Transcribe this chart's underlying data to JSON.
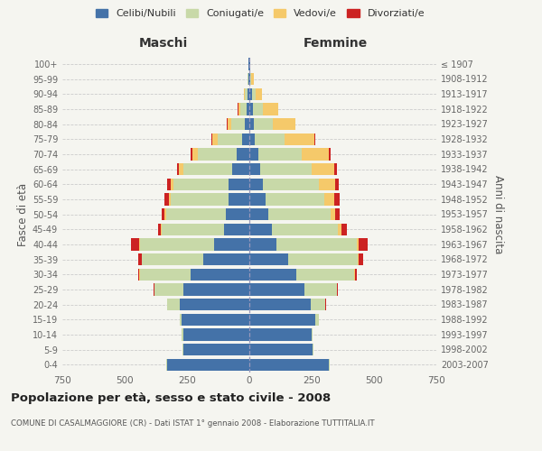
{
  "age_groups": [
    "0-4",
    "5-9",
    "10-14",
    "15-19",
    "20-24",
    "25-29",
    "30-34",
    "35-39",
    "40-44",
    "45-49",
    "50-54",
    "55-59",
    "60-64",
    "65-69",
    "70-74",
    "75-79",
    "80-84",
    "85-89",
    "90-94",
    "95-99",
    "100+"
  ],
  "birth_years": [
    "2003-2007",
    "1998-2002",
    "1993-1997",
    "1988-1992",
    "1983-1987",
    "1978-1982",
    "1973-1977",
    "1968-1972",
    "1963-1967",
    "1958-1962",
    "1953-1957",
    "1948-1952",
    "1943-1947",
    "1938-1942",
    "1933-1937",
    "1928-1932",
    "1923-1927",
    "1918-1922",
    "1913-1917",
    "1908-1912",
    "≤ 1907"
  ],
  "maschi": {
    "celibe": [
      330,
      265,
      265,
      270,
      280,
      265,
      235,
      185,
      140,
      100,
      95,
      85,
      85,
      70,
      50,
      28,
      18,
      12,
      8,
      4,
      2
    ],
    "coniugato": [
      2,
      3,
      5,
      10,
      50,
      115,
      205,
      245,
      300,
      250,
      240,
      230,
      220,
      195,
      155,
      100,
      55,
      25,
      10,
      3,
      1
    ],
    "vedovo": [
      0,
      0,
      0,
      0,
      0,
      1,
      1,
      2,
      3,
      4,
      5,
      8,
      12,
      18,
      25,
      20,
      15,
      8,
      3,
      1,
      0
    ],
    "divorziato": [
      0,
      0,
      0,
      0,
      1,
      3,
      5,
      12,
      30,
      12,
      10,
      18,
      12,
      8,
      5,
      3,
      2,
      1,
      0,
      0,
      0
    ]
  },
  "femmine": {
    "nubile": [
      320,
      255,
      250,
      265,
      245,
      220,
      190,
      155,
      110,
      90,
      75,
      65,
      55,
      45,
      35,
      22,
      18,
      15,
      10,
      5,
      2
    ],
    "coniugata": [
      2,
      3,
      5,
      15,
      60,
      130,
      230,
      280,
      320,
      265,
      250,
      235,
      225,
      205,
      175,
      120,
      75,
      40,
      15,
      4,
      1
    ],
    "vedova": [
      0,
      0,
      0,
      0,
      1,
      2,
      3,
      5,
      8,
      15,
      20,
      42,
      65,
      90,
      110,
      120,
      90,
      60,
      25,
      8,
      2
    ],
    "divorziata": [
      0,
      0,
      0,
      0,
      2,
      4,
      8,
      18,
      35,
      20,
      18,
      20,
      15,
      10,
      6,
      4,
      3,
      2,
      1,
      0,
      0
    ]
  },
  "colors": {
    "celibe": "#4472a8",
    "coniugato": "#c8d9a8",
    "vedovo": "#f5c96a",
    "divorziato": "#cc2222"
  },
  "xlim": 750,
  "title": "Popolazione per età, sesso e stato civile - 2008",
  "subtitle": "COMUNE DI CASALMAGGIORE (CR) - Dati ISTAT 1° gennaio 2008 - Elaborazione TUTTITALIA.IT",
  "ylabel_left": "Fasce di età",
  "ylabel_right": "Anni di nascita",
  "legend_labels": [
    "Celibi/Nubili",
    "Coniugati/e",
    "Vedovi/e",
    "Divorziati/e"
  ],
  "bg_color": "#f5f5f0",
  "maschi_label": "Maschi",
  "femmine_label": "Femmine"
}
